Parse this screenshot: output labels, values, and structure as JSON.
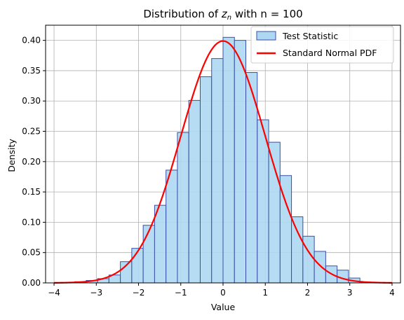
{
  "chart_data": {
    "type": "bar",
    "title_prefix": "Distribution of ",
    "title_var": "z",
    "title_sub": "n",
    "title_suffix": " with n = 100",
    "xlabel": "Value",
    "ylabel": "Density",
    "xlim": [
      -4.2,
      4.2
    ],
    "ylim": [
      0,
      0.425
    ],
    "x_ticks": [
      -4,
      -3,
      -2,
      -1,
      0,
      1,
      2,
      3,
      4
    ],
    "x_tick_labels": [
      "−4",
      "−3",
      "−2",
      "−1",
      "0",
      "1",
      "2",
      "3",
      "4"
    ],
    "y_ticks": [
      0.0,
      0.05,
      0.1,
      0.15,
      0.2,
      0.25,
      0.3,
      0.35,
      0.4
    ],
    "y_tick_labels": [
      "0.00",
      "0.05",
      "0.10",
      "0.15",
      "0.20",
      "0.25",
      "0.30",
      "0.35",
      "0.40"
    ],
    "grid": true,
    "legend_position": "top-right",
    "histogram": {
      "name": "Test Statistic",
      "fill_color": "#aed8f2",
      "edge_color": "#3a4fa8",
      "bin_width": 0.27,
      "bin_edges_start": -3.51,
      "values": [
        0.002,
        0.004,
        0.007,
        0.013,
        0.035,
        0.057,
        0.095,
        0.128,
        0.186,
        0.248,
        0.301,
        0.34,
        0.37,
        0.405,
        0.4,
        0.347,
        0.269,
        0.232,
        0.177,
        0.109,
        0.077,
        0.052,
        0.028,
        0.021,
        0.008
      ]
    },
    "curve": {
      "name": "Standard Normal PDF",
      "color": "#ff0000",
      "x_range": [
        -4,
        4
      ],
      "function": "standard normal density"
    }
  }
}
